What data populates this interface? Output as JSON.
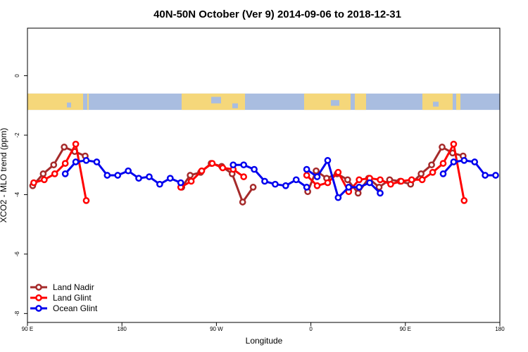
{
  "chart_data": {
    "type": "line",
    "title": "40N-50N October (Ver 9)   2014-09-06 to 2018-12-31",
    "xlabel": "Longitude",
    "ylabel": "XCO2 - MLO trend (ppm)",
    "xlim": [
      90,
      540
    ],
    "ylim": [
      -8.3,
      1.6
    ],
    "x_ticks": [
      {
        "value": 90,
        "label": "90 E"
      },
      {
        "value": 180,
        "label": "180"
      },
      {
        "value": 270,
        "label": "90 W"
      },
      {
        "value": 360,
        "label": "0"
      },
      {
        "value": 450,
        "label": "90 E"
      },
      {
        "value": 540,
        "label": "180"
      }
    ],
    "y_ticks": [
      {
        "value": 0,
        "label": "0"
      },
      {
        "value": -2,
        "label": "-2"
      },
      {
        "value": -4,
        "label": "-4"
      },
      {
        "value": -6,
        "label": "-6"
      },
      {
        "value": -8,
        "label": "-8"
      }
    ],
    "map_strip": {
      "y_top": -0.6,
      "y_bottom": -1.15,
      "land_color": "#f5d77a",
      "ocean_color": "#a9bde0"
    },
    "legend_position": "bottom-left",
    "series": [
      {
        "name": "Land Nadir",
        "color": "#a52a2a",
        "segments": [
          [
            [
              95,
              -3.7
            ],
            [
              105,
              -3.3
            ],
            [
              115,
              -3.0
            ],
            [
              125,
              -2.4
            ],
            [
              135,
              -2.55
            ],
            [
              145,
              -2.7
            ]
          ],
          [
            [
              237,
              -3.75
            ],
            [
              245,
              -3.35
            ],
            [
              255,
              -3.25
            ],
            [
              265,
              -2.95
            ],
            [
              275,
              -3.05
            ],
            [
              285,
              -3.3
            ],
            [
              295,
              -4.25
            ],
            [
              305,
              -3.75
            ]
          ],
          [
            [
              357,
              -3.9
            ],
            [
              365,
              -3.2
            ],
            [
              375,
              -3.45
            ],
            [
              385,
              -3.3
            ],
            [
              395,
              -3.5
            ],
            [
              405,
              -3.95
            ],
            [
              415,
              -3.45
            ],
            [
              425,
              -3.75
            ],
            [
              435,
              -3.5
            ],
            [
              445,
              -3.55
            ],
            [
              455,
              -3.65
            ],
            [
              465,
              -3.3
            ],
            [
              475,
              -3.0
            ],
            [
              485,
              -2.4
            ],
            [
              495,
              -2.6
            ],
            [
              505,
              -2.7
            ]
          ]
        ]
      },
      {
        "name": "Land Glint",
        "color": "#ff0000",
        "segments": [
          [
            [
              96,
              -3.6
            ],
            [
              106,
              -3.5
            ],
            [
              116,
              -3.3
            ],
            [
              126,
              -2.95
            ],
            [
              136,
              -2.3
            ],
            [
              146,
              -4.2
            ]
          ],
          [
            [
              236,
              -3.75
            ],
            [
              246,
              -3.55
            ],
            [
              256,
              -3.2
            ],
            [
              266,
              -2.95
            ],
            [
              276,
              -3.1
            ],
            [
              286,
              -3.15
            ],
            [
              296,
              -3.4
            ]
          ],
          [
            [
              356,
              -3.35
            ],
            [
              366,
              -3.7
            ],
            [
              376,
              -3.6
            ],
            [
              386,
              -3.25
            ],
            [
              396,
              -3.9
            ],
            [
              406,
              -3.5
            ],
            [
              416,
              -3.45
            ],
            [
              426,
              -3.5
            ],
            [
              436,
              -3.65
            ],
            [
              446,
              -3.55
            ],
            [
              456,
              -3.5
            ],
            [
              466,
              -3.5
            ],
            [
              476,
              -3.25
            ],
            [
              486,
              -2.95
            ],
            [
              496,
              -2.3
            ],
            [
              506,
              -4.2
            ]
          ]
        ]
      },
      {
        "name": "Ocean Glint",
        "color": "#0000ee",
        "segments": [
          [
            [
              126,
              -3.3
            ],
            [
              136,
              -2.9
            ],
            [
              146,
              -2.85
            ],
            [
              156,
              -2.9
            ],
            [
              166,
              -3.35
            ],
            [
              176,
              -3.35
            ],
            [
              186,
              -3.2
            ],
            [
              196,
              -3.45
            ],
            [
              206,
              -3.4
            ],
            [
              216,
              -3.65
            ],
            [
              226,
              -3.45
            ],
            [
              236,
              -3.6
            ]
          ],
          [
            [
              286,
              -3.0
            ],
            [
              296,
              -3.0
            ],
            [
              306,
              -3.15
            ],
            [
              316,
              -3.55
            ],
            [
              326,
              -3.65
            ],
            [
              336,
              -3.7
            ],
            [
              346,
              -3.5
            ],
            [
              356,
              -3.75
            ]
          ],
          [
            [
              356,
              -3.15
            ],
            [
              366,
              -3.4
            ],
            [
              376,
              -2.85
            ],
            [
              386,
              -4.1
            ],
            [
              396,
              -3.75
            ],
            [
              406,
              -3.75
            ],
            [
              416,
              -3.6
            ],
            [
              426,
              -3.95
            ]
          ],
          [
            [
              486,
              -3.3
            ],
            [
              496,
              -2.9
            ],
            [
              506,
              -2.85
            ],
            [
              516,
              -2.9
            ],
            [
              526,
              -3.35
            ],
            [
              536,
              -3.35
            ]
          ]
        ]
      }
    ]
  }
}
